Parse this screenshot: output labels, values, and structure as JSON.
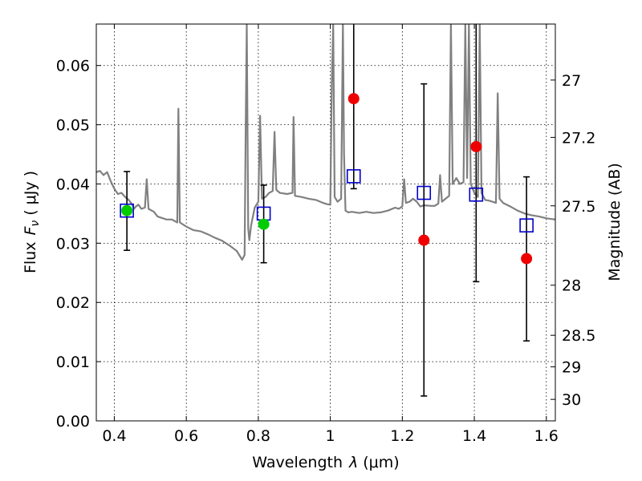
{
  "chart_data": {
    "type": "scatter",
    "xlabel": "Wavelength",
    "xlabel_symbol": "λ",
    "xlabel_unit": "(μm)",
    "ylabel": "Flux",
    "ylabel_symbol": "F",
    "ylabel_subscript": "ν",
    "ylabel_unit": "( μJy )",
    "y2label": "Magnitude (AB)",
    "xlim": [
      0.35,
      1.625
    ],
    "ylim": [
      0.0,
      0.067
    ],
    "grid": true,
    "x_ticks": [
      {
        "value": 0.4,
        "label": "0.4"
      },
      {
        "value": 0.6,
        "label": "0.6"
      },
      {
        "value": 0.8,
        "label": "0.8"
      },
      {
        "value": 1.0,
        "label": "1"
      },
      {
        "value": 1.2,
        "label": "1.2"
      },
      {
        "value": 1.4,
        "label": "1.4"
      },
      {
        "value": 1.6,
        "label": "1.6"
      }
    ],
    "y_ticks": [
      {
        "value": 0.0,
        "label": "0.00"
      },
      {
        "value": 0.01,
        "label": "0.01"
      },
      {
        "value": 0.02,
        "label": "0.02"
      },
      {
        "value": 0.03,
        "label": "0.03"
      },
      {
        "value": 0.04,
        "label": "0.04"
      },
      {
        "value": 0.05,
        "label": "0.05"
      },
      {
        "value": 0.06,
        "label": "0.06"
      }
    ],
    "y2_ticks": [
      {
        "value": 27.0,
        "label": "27"
      },
      {
        "value": 27.2,
        "label": "27.2"
      },
      {
        "value": 27.5,
        "label": "27.5"
      },
      {
        "value": 28.0,
        "label": "28"
      },
      {
        "value": 28.5,
        "label": "28.5"
      },
      {
        "value": 29.0,
        "label": "29"
      },
      {
        "value": 30.0,
        "label": "30"
      }
    ],
    "series": [
      {
        "kind": "model-spectrum",
        "color": "#808080",
        "points": [
          [
            0.35,
            0.042
          ],
          [
            0.36,
            0.0422
          ],
          [
            0.37,
            0.0415
          ],
          [
            0.38,
            0.042
          ],
          [
            0.39,
            0.0405
          ],
          [
            0.4,
            0.0392
          ],
          [
            0.41,
            0.0383
          ],
          [
            0.42,
            0.0385
          ],
          [
            0.43,
            0.0378
          ],
          [
            0.44,
            0.0373
          ],
          [
            0.45,
            0.0365
          ],
          [
            0.455,
            0.0358
          ],
          [
            0.46,
            0.0362
          ],
          [
            0.467,
            0.0365
          ],
          [
            0.475,
            0.0358
          ],
          [
            0.485,
            0.036
          ],
          [
            0.49,
            0.0408
          ],
          [
            0.495,
            0.0358
          ],
          [
            0.51,
            0.0353
          ],
          [
            0.52,
            0.0345
          ],
          [
            0.53,
            0.0343
          ],
          [
            0.545,
            0.034
          ],
          [
            0.56,
            0.034
          ],
          [
            0.575,
            0.0335
          ],
          [
            0.578,
            0.0527
          ],
          [
            0.582,
            0.0335
          ],
          [
            0.6,
            0.0328
          ],
          [
            0.62,
            0.0322
          ],
          [
            0.64,
            0.032
          ],
          [
            0.66,
            0.0315
          ],
          [
            0.68,
            0.0309
          ],
          [
            0.7,
            0.0304
          ],
          [
            0.72,
            0.0296
          ],
          [
            0.74,
            0.0287
          ],
          [
            0.755,
            0.0272
          ],
          [
            0.762,
            0.028
          ],
          [
            0.765,
            0.05
          ],
          [
            0.768,
            0.067
          ],
          [
            0.772,
            0.0325
          ],
          [
            0.775,
            0.0305
          ],
          [
            0.78,
            0.033
          ],
          [
            0.79,
            0.036
          ],
          [
            0.8,
            0.037
          ],
          [
            0.805,
            0.0515
          ],
          [
            0.81,
            0.0375
          ],
          [
            0.82,
            0.0378
          ],
          [
            0.83,
            0.0385
          ],
          [
            0.84,
            0.0388
          ],
          [
            0.845,
            0.0488
          ],
          [
            0.85,
            0.039
          ],
          [
            0.86,
            0.0385
          ],
          [
            0.88,
            0.0383
          ],
          [
            0.895,
            0.0385
          ],
          [
            0.898,
            0.0513
          ],
          [
            0.902,
            0.038
          ],
          [
            0.92,
            0.0378
          ],
          [
            0.94,
            0.0375
          ],
          [
            0.96,
            0.0373
          ],
          [
            0.98,
            0.0368
          ],
          [
            0.99,
            0.0366
          ],
          [
            1.0,
            0.0365
          ],
          [
            1.004,
            0.0565
          ],
          [
            1.008,
            0.067
          ],
          [
            1.012,
            0.0378
          ],
          [
            1.02,
            0.037
          ],
          [
            1.03,
            0.0375
          ],
          [
            1.035,
            0.067
          ],
          [
            1.038,
            0.045
          ],
          [
            1.042,
            0.0355
          ],
          [
            1.05,
            0.0352
          ],
          [
            1.06,
            0.0353
          ],
          [
            1.08,
            0.0351
          ],
          [
            1.1,
            0.0353
          ],
          [
            1.12,
            0.0351
          ],
          [
            1.14,
            0.0352
          ],
          [
            1.16,
            0.0355
          ],
          [
            1.18,
            0.036
          ],
          [
            1.19,
            0.0358
          ],
          [
            1.2,
            0.0362
          ],
          [
            1.205,
            0.0408
          ],
          [
            1.21,
            0.0368
          ],
          [
            1.22,
            0.037
          ],
          [
            1.23,
            0.0375
          ],
          [
            1.24,
            0.037
          ],
          [
            1.25,
            0.0362
          ],
          [
            1.26,
            0.0364
          ],
          [
            1.28,
            0.0363
          ],
          [
            1.29,
            0.0363
          ],
          [
            1.3,
            0.0367
          ],
          [
            1.305,
            0.0415
          ],
          [
            1.31,
            0.037
          ],
          [
            1.32,
            0.0375
          ],
          [
            1.33,
            0.038
          ],
          [
            1.335,
            0.067
          ],
          [
            1.34,
            0.04
          ],
          [
            1.35,
            0.041
          ],
          [
            1.36,
            0.04
          ],
          [
            1.37,
            0.0403
          ],
          [
            1.375,
            0.067
          ],
          [
            1.38,
            0.041
          ],
          [
            1.385,
            0.067
          ],
          [
            1.39,
            0.04
          ],
          [
            1.4,
            0.0385
          ],
          [
            1.41,
            0.0378
          ],
          [
            1.415,
            0.067
          ],
          [
            1.42,
            0.0385
          ],
          [
            1.43,
            0.0373
          ],
          [
            1.44,
            0.0372
          ],
          [
            1.45,
            0.037
          ],
          [
            1.46,
            0.0368
          ],
          [
            1.465,
            0.0553
          ],
          [
            1.47,
            0.0375
          ],
          [
            1.48,
            0.0368
          ],
          [
            1.5,
            0.0362
          ],
          [
            1.52,
            0.0355
          ],
          [
            1.54,
            0.035
          ],
          [
            1.56,
            0.0347
          ],
          [
            1.58,
            0.0345
          ],
          [
            1.6,
            0.0342
          ],
          [
            1.625,
            0.034
          ]
        ]
      },
      {
        "kind": "model-photometry",
        "marker": "open-square",
        "color": "#0000cc",
        "points": [
          [
            0.435,
            0.0355
          ],
          [
            0.815,
            0.035
          ],
          [
            1.065,
            0.0413
          ],
          [
            1.26,
            0.0385
          ],
          [
            1.405,
            0.0382
          ],
          [
            1.545,
            0.033
          ]
        ]
      },
      {
        "kind": "observed-photometry",
        "marker": "filled-circle",
        "color": "#00cc00",
        "points": [
          {
            "x": 0.435,
            "y": 0.0355,
            "ylow": 0.0288,
            "yhigh": 0.0421
          },
          {
            "x": 0.815,
            "y": 0.0332,
            "ylow": 0.0267,
            "yhigh": 0.0398
          }
        ]
      },
      {
        "kind": "observed-photometry",
        "marker": "filled-circle",
        "color": "#ee0000",
        "points": [
          {
            "x": 1.065,
            "y": 0.0544,
            "ylow": 0.0392,
            "yhigh": 0.067
          },
          {
            "x": 1.26,
            "y": 0.0305,
            "ylow": 0.0042,
            "yhigh": 0.0569
          },
          {
            "x": 1.405,
            "y": 0.0463,
            "ylow": 0.0235,
            "yhigh": 0.067
          },
          {
            "x": 1.545,
            "y": 0.0274,
            "ylow": 0.0135,
            "yhigh": 0.0412
          }
        ]
      }
    ]
  }
}
